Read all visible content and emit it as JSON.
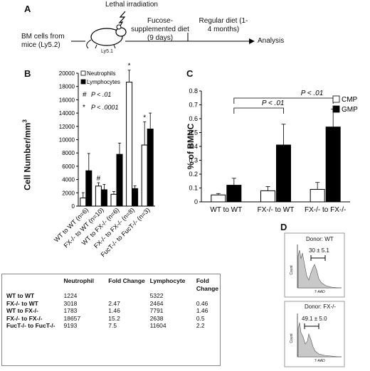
{
  "panel_labels": {
    "a": "A",
    "b": "B",
    "c": "C",
    "d": "D"
  },
  "schema": {
    "bm_source": "BM cells from mice (Ly5.2)",
    "irradiation": "Lethal irradiation",
    "mouse_label": "Ly5.1",
    "diet1": "Fucose-supplemented diet (9 days)",
    "diet2": "Regular diet (1-4 months)",
    "analysis": "Analysis"
  },
  "chart_data": [
    {
      "type": "bar",
      "panel": "B",
      "ylabel": "Cell Number/mm",
      "ylabel_sup": "3",
      "ylim": [
        0,
        20000
      ],
      "yticks": [
        "0",
        "2000",
        "4000",
        "6000",
        "8000",
        "10000",
        "12000",
        "14000",
        "16000",
        "18000",
        "20000"
      ],
      "categories": [
        "WT to WT (n=6)",
        "FX-/- to WT (n=10)",
        "WT to FX-/- (n=6)",
        "FX-/- to FX-/- (n=8)",
        "FucT-/- to FucT-/- (n=3)"
      ],
      "series": [
        {
          "name": "Neutrophils",
          "color": "#ffffff",
          "values": [
            1224,
            3018,
            1783,
            18657,
            9193
          ],
          "errors": [
            800,
            500,
            400,
            1800,
            3500
          ]
        },
        {
          "name": "Lymphocytes",
          "color": "#000000",
          "values": [
            5322,
            2464,
            7791,
            2638,
            11604
          ],
          "errors": [
            2600,
            800,
            1700,
            400,
            2400
          ]
        }
      ],
      "markers": [
        {
          "category": 1,
          "series": 0,
          "symbol": "#"
        },
        {
          "category": 3,
          "series": 0,
          "symbol": "*"
        },
        {
          "category": 4,
          "series": 0,
          "symbol": "*"
        }
      ],
      "annotations": [
        {
          "symbol": "#",
          "text": "P < .01"
        },
        {
          "symbol": "*",
          "text": "P < .0001"
        }
      ]
    },
    {
      "type": "bar",
      "panel": "C",
      "ylabel": "% of BMNC",
      "ylim": [
        0,
        0.8
      ],
      "yticks": [
        "0",
        "0.1",
        "0.2",
        "0.3",
        "0.4",
        "0.5",
        "0.6",
        "0.7",
        "0.8"
      ],
      "categories": [
        "WT to WT",
        "FX-/- to WT",
        "FX-/- to FX-/-"
      ],
      "series": [
        {
          "name": "CMP",
          "color": "#ffffff",
          "values": [
            0.05,
            0.08,
            0.09
          ],
          "errors": [
            0.01,
            0.03,
            0.05
          ]
        },
        {
          "name": "GMP",
          "color": "#000000",
          "values": [
            0.12,
            0.41,
            0.54
          ],
          "errors": [
            0.05,
            0.15,
            0.13
          ]
        }
      ],
      "brackets": [
        {
          "from": 0,
          "to": 1,
          "text": "P < .01"
        },
        {
          "from": 0,
          "to": 2,
          "text": "P < .01"
        }
      ]
    }
  ],
  "table": {
    "headers": [
      "",
      "Neutrophil",
      "Fold Change",
      "Lymphocyte",
      "Fold Change"
    ],
    "rows": [
      {
        "label": "WT to WT",
        "values": [
          "1224",
          "",
          "5322",
          ""
        ]
      },
      {
        "label": "FX-/- to WT",
        "values": [
          "3018",
          "2.47",
          "2464",
          "0.46"
        ]
      },
      {
        "label": "WT to FX-/-",
        "values": [
          "1783",
          "1.46",
          "7791",
          "1.46"
        ]
      },
      {
        "label": "FX-/- to FX-/-",
        "values": [
          "18657",
          "15.2",
          "2638",
          "0.5"
        ]
      },
      {
        "label": "FucT-/- to FucT-/-",
        "values": [
          "9193",
          "7.5",
          "11604",
          "2.2"
        ]
      }
    ]
  },
  "flow": {
    "top": {
      "title": "Donor: WT",
      "gate": "30 ± 5.1",
      "xlabel": "7-AAD",
      "ylabel": "Count"
    },
    "bottom": {
      "title": "Donor: FX-/-",
      "gate": "49.1 ± 5.0",
      "xlabel": "7-AAD",
      "ylabel": "Count"
    }
  }
}
